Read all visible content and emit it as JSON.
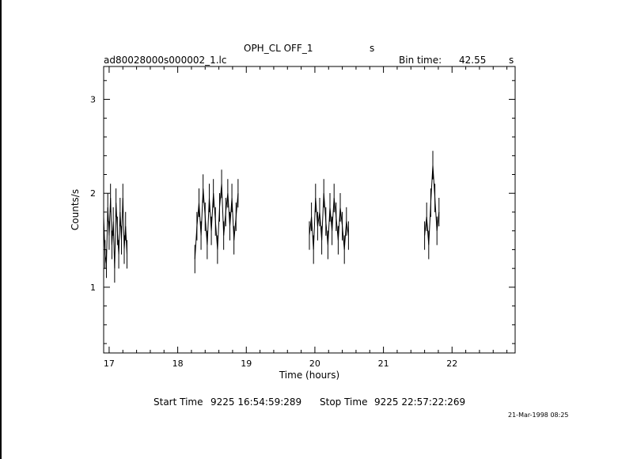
{
  "header": {
    "object_label": "OPH_CL OFF_1",
    "object_unit": "s",
    "filename": "ad80028000s000002_1.lc",
    "bin_time_label": "Bin time:",
    "bin_time_value": "42.55",
    "bin_time_unit": "s"
  },
  "footer": {
    "start_label": "Start Time",
    "start_value": "9225 16:54:59:289",
    "stop_label": "Stop Time",
    "stop_value": "9225 22:57:22:269",
    "date_stamp": "21-Mar-1998 08:25"
  },
  "chart_data": {
    "type": "line",
    "xlabel": "Time (hours)",
    "ylabel": "Counts/s",
    "xlim": [
      16.92,
      22.92
    ],
    "ylim": [
      0.3,
      3.35
    ],
    "x_ticks": [
      17,
      18,
      19,
      20,
      21,
      22
    ],
    "y_ticks": [
      1,
      2,
      3
    ],
    "x_tick_labels": [
      "17",
      "18",
      "19",
      "20",
      "21",
      "22"
    ],
    "y_tick_labels": [
      "1",
      "2",
      "3"
    ],
    "grid": false,
    "legend": "none",
    "segments": [
      {
        "name": "",
        "x": [
          16.92,
          16.94,
          16.96,
          16.98,
          17.0,
          17.02,
          17.04,
          17.06,
          17.08,
          17.1,
          17.12,
          17.14,
          17.16,
          17.18,
          17.2,
          17.22,
          17.24,
          17.26
        ],
        "y": [
          1.75,
          1.35,
          1.25,
          1.85,
          1.55,
          1.95,
          1.45,
          1.7,
          1.2,
          1.9,
          1.6,
          1.35,
          1.8,
          1.5,
          1.95,
          1.4,
          1.65,
          1.35
        ]
      },
      {
        "name": "",
        "x": [
          18.25,
          18.28,
          18.31,
          18.34,
          18.37,
          18.4,
          18.43,
          18.46,
          18.49,
          18.52,
          18.55,
          18.58,
          18.61,
          18.64,
          18.67,
          18.7,
          18.73,
          18.76,
          18.79,
          18.82,
          18.85,
          18.88
        ],
        "y": [
          1.3,
          1.65,
          1.9,
          1.55,
          2.05,
          1.75,
          1.45,
          1.95,
          1.6,
          2.0,
          1.7,
          1.4,
          1.85,
          2.1,
          1.55,
          1.8,
          2.0,
          1.65,
          1.95,
          1.5,
          1.75,
          2.0
        ]
      },
      {
        "name": "",
        "x": [
          19.92,
          19.95,
          19.98,
          20.01,
          20.04,
          20.07,
          20.1,
          20.13,
          20.16,
          20.19,
          20.22,
          20.25,
          20.28,
          20.31,
          20.34,
          20.37,
          20.4,
          20.43,
          20.46,
          20.49
        ],
        "y": [
          1.55,
          1.75,
          1.4,
          1.95,
          1.65,
          1.8,
          1.5,
          2.0,
          1.7,
          1.45,
          1.85,
          1.6,
          1.95,
          1.75,
          1.5,
          1.85,
          1.65,
          1.4,
          1.7,
          1.55
        ]
      },
      {
        "name": "",
        "x": [
          21.6,
          21.63,
          21.66,
          21.69,
          21.72,
          21.75,
          21.78,
          21.81
        ],
        "y": [
          1.55,
          1.75,
          1.45,
          1.9,
          2.3,
          1.95,
          1.6,
          1.8
        ]
      }
    ]
  }
}
